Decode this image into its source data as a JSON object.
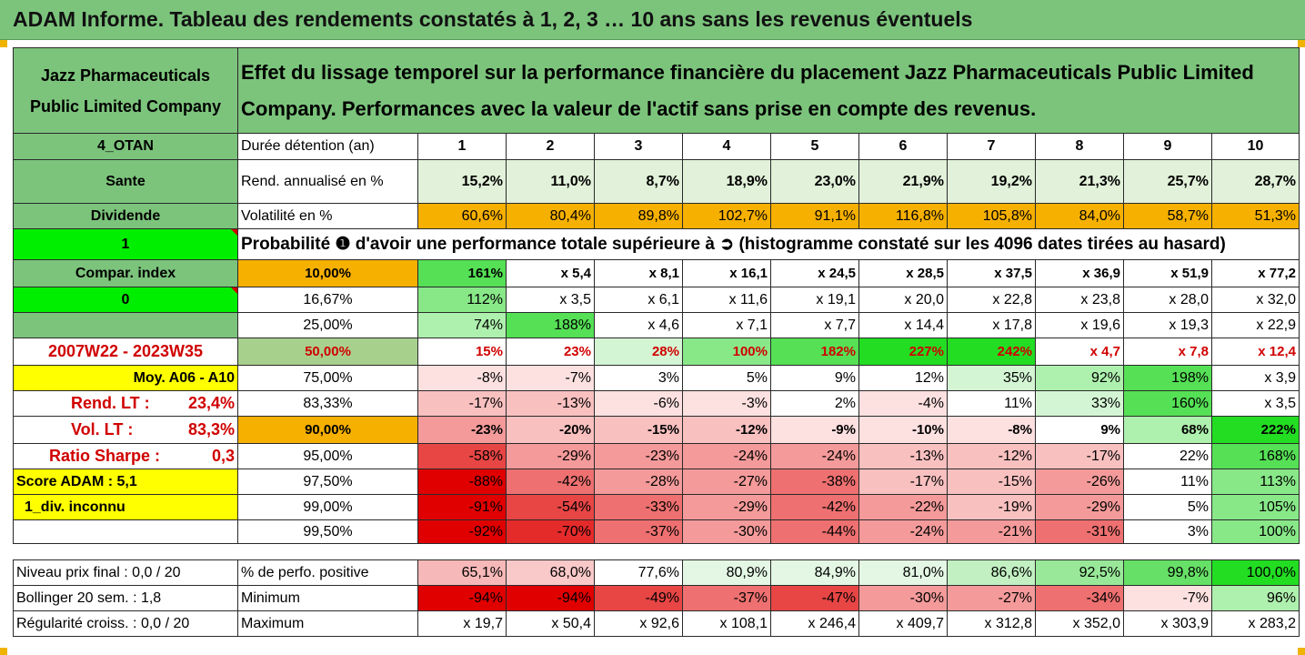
{
  "title": "ADAM Informe. Tableau des rendements constatés à 1, 2, 3 … 10 ans sans les revenus éventuels",
  "company": "Jazz Pharmaceuticals Public Limited Company",
  "header_text": "Effet du lissage temporel sur la performance financière du placement Jazz Pharmaceuticals Public Limited Company. Performances avec la valeur de l'actif sans prise en compte des revenus.",
  "left_labels": {
    "code": "4_OTAN",
    "sector": "Sante",
    "dividend": "Dividende",
    "one": "1",
    "compar": "Compar. index",
    "zero": "0",
    "blank": "",
    "period": "2007W22 - 2023W35",
    "moy": "Moy. A06 - A10",
    "rend_lt": "Rend. LT :",
    "rend_lt_val": "23,4%",
    "vol_lt": "Vol. LT :",
    "vol_lt_val": "83,3%",
    "sharpe": "Ratio Sharpe :",
    "sharpe_val": "0,3",
    "score": "Score ADAM : 5,1",
    "div": "1_div. inconnu",
    "blank2": ""
  },
  "row_labels": {
    "duration": "Durée détention (an)",
    "rend": "Rend. annualisé en %",
    "vol": "Volatilité en %",
    "prob": "Probabilité ❶ d'avoir une performance totale supérieure à ➲ (histogramme constaté sur les 4096 dates tirées au hasard)"
  },
  "years": [
    "1",
    "2",
    "3",
    "4",
    "5",
    "6",
    "7",
    "8",
    "9",
    "10"
  ],
  "rend": [
    "15,2%",
    "11,0%",
    "8,7%",
    "18,9%",
    "23,0%",
    "21,9%",
    "19,2%",
    "21,3%",
    "25,7%",
    "28,7%"
  ],
  "vol": [
    "60,6%",
    "80,4%",
    "89,8%",
    "102,7%",
    "91,1%",
    "116,8%",
    "105,8%",
    "84,0%",
    "58,7%",
    "51,3%"
  ],
  "prob_rows": [
    {
      "p": "10,00%",
      "v": [
        "161%",
        "x 5,4",
        "x 8,1",
        "x 16,1",
        "x 24,5",
        "x 28,5",
        "x 37,5",
        "x 36,9",
        "x 51,9",
        "x 77,2"
      ]
    },
    {
      "p": "16,67%",
      "v": [
        "112%",
        "x 3,5",
        "x 6,1",
        "x 11,6",
        "x 19,1",
        "x 20,0",
        "x 22,8",
        "x 23,8",
        "x 28,0",
        "x 32,0"
      ]
    },
    {
      "p": "25,00%",
      "v": [
        "74%",
        "188%",
        "x 4,6",
        "x 7,1",
        "x 7,7",
        "x 14,4",
        "x 17,8",
        "x 19,6",
        "x 19,3",
        "x 22,9"
      ]
    },
    {
      "p": "50,00%",
      "v": [
        "15%",
        "23%",
        "28%",
        "100%",
        "182%",
        "227%",
        "242%",
        "x 4,7",
        "x 7,8",
        "x 12,4"
      ]
    },
    {
      "p": "75,00%",
      "v": [
        "-8%",
        "-7%",
        "3%",
        "5%",
        "9%",
        "12%",
        "35%",
        "92%",
        "198%",
        "x 3,9"
      ]
    },
    {
      "p": "83,33%",
      "v": [
        "-17%",
        "-13%",
        "-6%",
        "-3%",
        "2%",
        "-4%",
        "11%",
        "33%",
        "160%",
        "x 3,5"
      ]
    },
    {
      "p": "90,00%",
      "v": [
        "-23%",
        "-20%",
        "-15%",
        "-12%",
        "-9%",
        "-10%",
        "-8%",
        "9%",
        "68%",
        "222%"
      ]
    },
    {
      "p": "95,00%",
      "v": [
        "-58%",
        "-29%",
        "-23%",
        "-24%",
        "-24%",
        "-13%",
        "-12%",
        "-17%",
        "22%",
        "168%"
      ]
    },
    {
      "p": "97,50%",
      "v": [
        "-88%",
        "-42%",
        "-28%",
        "-27%",
        "-38%",
        "-17%",
        "-15%",
        "-26%",
        "11%",
        "113%"
      ]
    },
    {
      "p": "99,00%",
      "v": [
        "-91%",
        "-54%",
        "-33%",
        "-29%",
        "-42%",
        "-22%",
        "-19%",
        "-29%",
        "5%",
        "105%"
      ]
    },
    {
      "p": "99,50%",
      "v": [
        "-92%",
        "-70%",
        "-37%",
        "-30%",
        "-44%",
        "-24%",
        "-21%",
        "-31%",
        "3%",
        "100%"
      ]
    }
  ],
  "bottom": {
    "niveau": "Niveau prix final : 0,0 / 20",
    "bollinger": "Bollinger 20 sem. :  1,8",
    "regularite": "Régularité croiss. : 0,0 / 20",
    "pos_label": "% de perfo. positive",
    "min_label": "Minimum",
    "max_label": "Maximum",
    "pos": [
      "65,1%",
      "68,0%",
      "77,6%",
      "80,9%",
      "84,9%",
      "81,0%",
      "86,6%",
      "92,5%",
      "99,8%",
      "100,0%"
    ],
    "min": [
      "-94%",
      "-94%",
      "-49%",
      "-37%",
      "-47%",
      "-30%",
      "-27%",
      "-34%",
      "-7%",
      "96%"
    ],
    "max": [
      "x 19,7",
      "x 50,4",
      "x 92,6",
      "x 108,1",
      "x 246,4",
      "x 409,7",
      "x 312,8",
      "x 352,0",
      "x 303,9",
      "x 283,2"
    ]
  },
  "colors": {
    "header_green": "#7cc47c",
    "light_green": "#e2f1d9",
    "bright_green": "#00ee00",
    "orange": "#f6b000",
    "yellow": "#ffff00",
    "red_text": "#d00000"
  }
}
